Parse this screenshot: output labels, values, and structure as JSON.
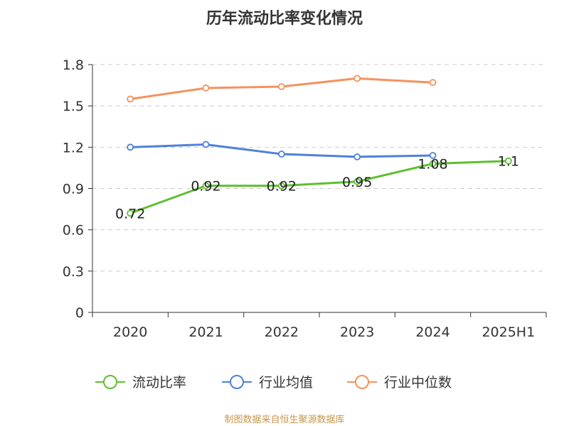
{
  "chart_data": {
    "type": "line",
    "title": "历年流动比率变化情况",
    "categories": [
      "2020",
      "2021",
      "2022",
      "2023",
      "2024",
      "2025H1"
    ],
    "ylim": [
      0,
      1.8
    ],
    "yticks": [
      "0",
      "0.3",
      "0.6",
      "0.9",
      "1.2",
      "1.5",
      "1.8"
    ],
    "grid": true,
    "legend_position": "bottom",
    "series": [
      {
        "name": "流动比率",
        "color": "#5dbf2f",
        "values": [
          0.72,
          0.92,
          0.92,
          0.95,
          1.08,
          1.1
        ],
        "labels": [
          "0.72",
          "0.92",
          "0.92",
          "0.95",
          "1.08",
          "1.1"
        ]
      },
      {
        "name": "行业均值",
        "color": "#4f81d9",
        "values": [
          1.2,
          1.22,
          1.15,
          1.13,
          1.14,
          null
        ]
      },
      {
        "name": "行业中位数",
        "color": "#f4925c",
        "values": [
          1.55,
          1.63,
          1.64,
          1.7,
          1.67,
          null
        ]
      }
    ]
  },
  "source": "制图数据来自恒生聚源数据库"
}
